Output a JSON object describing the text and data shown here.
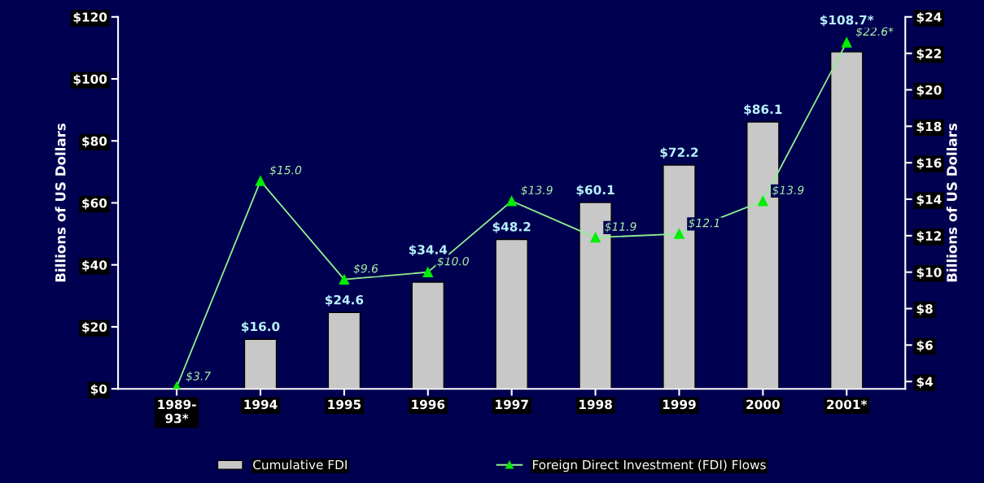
{
  "chart_data": {
    "type": "bar",
    "categories": [
      "1989-93*",
      "1994",
      "1995",
      "1996",
      "1997",
      "1998",
      "1999",
      "2000",
      "2001*"
    ],
    "ylabel": "Billions of US Dollars",
    "y2label": "Billions of US Dollars",
    "series": [
      {
        "name": "Cumulative FDI",
        "type": "bar",
        "color": "#c8c8c8",
        "values": [
          null,
          16.0,
          24.6,
          34.4,
          48.2,
          60.1,
          72.2,
          86.1,
          108.7
        ],
        "value_labels": [
          null,
          "$16.0",
          "$24.6",
          "$34.4",
          "$48.2",
          "$60.1",
          "$72.2",
          "$86.1",
          "$108.7*"
        ]
      },
      {
        "name": "Foreign Direct Investment (FDI) Flows",
        "type": "line",
        "axis": "y2",
        "color": "#90ee90",
        "values": [
          3.7,
          15.0,
          9.6,
          10.0,
          13.9,
          11.9,
          12.1,
          13.9,
          22.6
        ],
        "value_labels": [
          "$3.7",
          "$15.0",
          "$9.6",
          "$10.0",
          "$13.9",
          "$11.9",
          "$12.1",
          "$13.9",
          "$22.6*"
        ]
      }
    ],
    "ylim": [
      0,
      120
    ],
    "yticks": [
      {
        "value": 0,
        "label": "$0"
      },
      {
        "value": 20,
        "label": "$20"
      },
      {
        "value": 40,
        "label": "$40"
      },
      {
        "value": 60,
        "label": "$60"
      },
      {
        "value": 80,
        "label": "$80"
      },
      {
        "value": 100,
        "label": "$100"
      },
      {
        "value": 120,
        "label": "$120"
      }
    ],
    "y2lim": [
      3.6,
      24
    ],
    "y2ticks": [
      {
        "value": 4,
        "label": "$4"
      },
      {
        "value": 6,
        "label": "$6"
      },
      {
        "value": 8,
        "label": "$8"
      },
      {
        "value": 10,
        "label": "$10"
      },
      {
        "value": 12,
        "label": "$12"
      },
      {
        "value": 14,
        "label": "$14"
      },
      {
        "value": 16,
        "label": "$16"
      },
      {
        "value": 18,
        "label": "$18"
      },
      {
        "value": 20,
        "label": "$20"
      },
      {
        "value": 22,
        "label": "$22"
      },
      {
        "value": 24,
        "label": "$24"
      }
    ],
    "marker": "triangle",
    "line_style": "solid",
    "grid": false,
    "legend": "bottom"
  }
}
